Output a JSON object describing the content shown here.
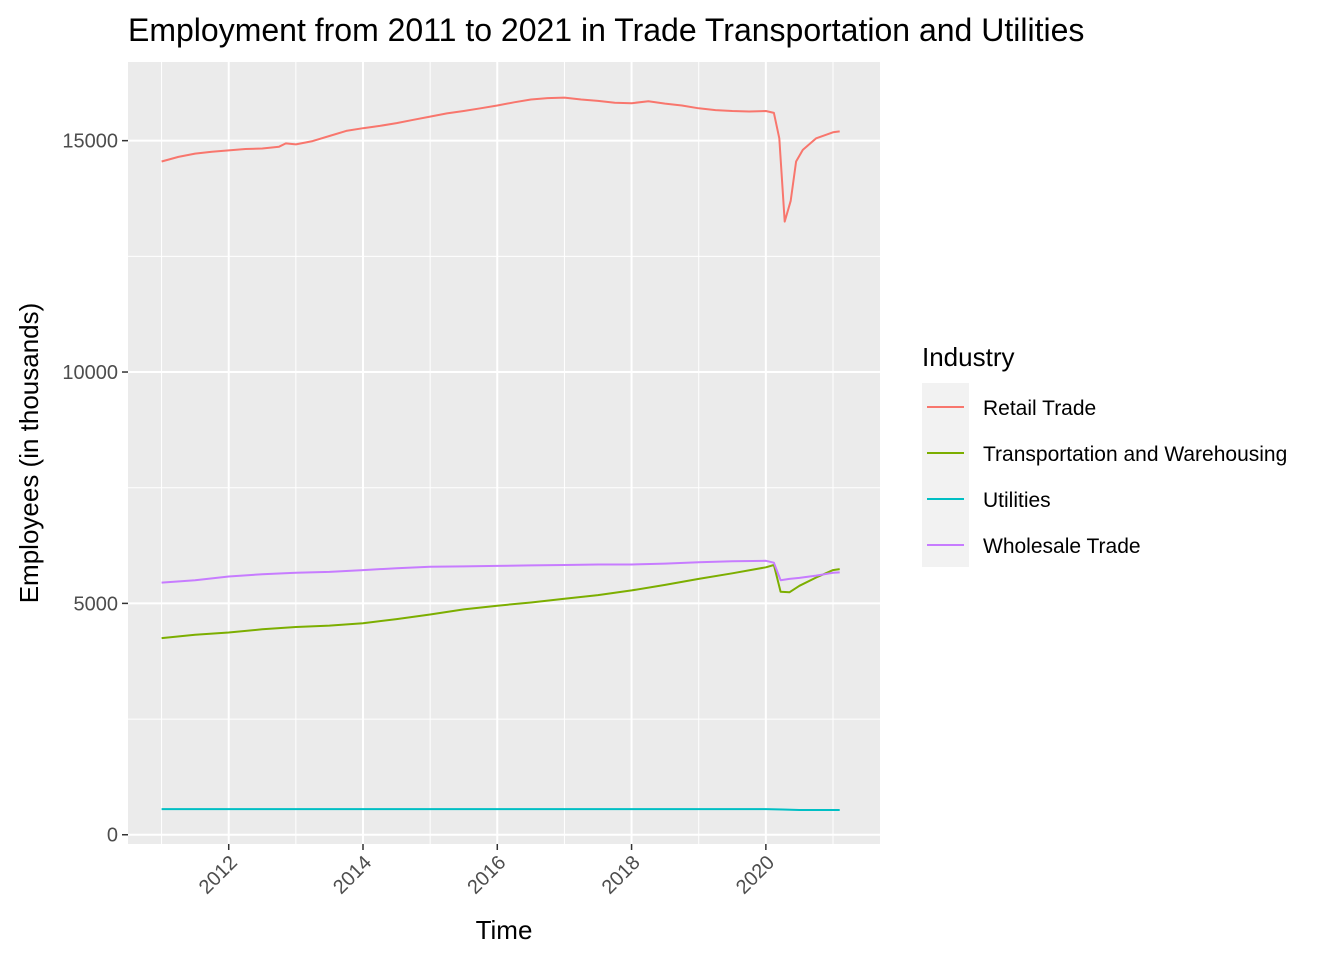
{
  "chart_data": {
    "type": "line",
    "title": "Employment from 2011 to 2021 in Trade Transportation and Utilities",
    "xlabel": "Time",
    "ylabel": "Employees (in thousands)",
    "xlim": [
      2010.5,
      2021.7
    ],
    "ylim": [
      -200,
      16700
    ],
    "x_ticks": [
      2012,
      2014,
      2016,
      2018,
      2020
    ],
    "y_ticks": [
      0,
      5000,
      10000,
      15000
    ],
    "grid": true,
    "legend": {
      "title": "Industry",
      "position": "right"
    },
    "series": [
      {
        "name": "Retail Trade",
        "color": "#F8766D",
        "x": [
          2011.0,
          2011.25,
          2011.5,
          2011.75,
          2012.0,
          2012.25,
          2012.5,
          2012.75,
          2012.85,
          2013.0,
          2013.25,
          2013.5,
          2013.75,
          2014.0,
          2014.25,
          2014.5,
          2014.75,
          2015.0,
          2015.25,
          2015.5,
          2015.75,
          2016.0,
          2016.25,
          2016.5,
          2016.75,
          2017.0,
          2017.25,
          2017.5,
          2017.75,
          2018.0,
          2018.25,
          2018.5,
          2018.75,
          2019.0,
          2019.25,
          2019.5,
          2019.75,
          2020.0,
          2020.12,
          2020.2,
          2020.28,
          2020.37,
          2020.45,
          2020.55,
          2020.75,
          2021.0,
          2021.1
        ],
        "values": [
          14550,
          14650,
          14720,
          14760,
          14790,
          14820,
          14830,
          14870,
          14940,
          14920,
          14990,
          15100,
          15210,
          15270,
          15320,
          15380,
          15450,
          15520,
          15590,
          15640,
          15700,
          15760,
          15830,
          15890,
          15920,
          15930,
          15890,
          15860,
          15820,
          15810,
          15850,
          15800,
          15760,
          15700,
          15660,
          15640,
          15630,
          15640,
          15600,
          15050,
          13250,
          13700,
          14550,
          14800,
          15050,
          15180,
          15200
        ]
      },
      {
        "name": "Transportation and Warehousing",
        "color": "#7CAE00",
        "x": [
          2011.0,
          2011.5,
          2012.0,
          2012.5,
          2013.0,
          2013.5,
          2014.0,
          2014.5,
          2015.0,
          2015.5,
          2016.0,
          2016.5,
          2017.0,
          2017.5,
          2018.0,
          2018.5,
          2019.0,
          2019.5,
          2020.0,
          2020.12,
          2020.22,
          2020.35,
          2020.5,
          2020.75,
          2021.0,
          2021.1
        ],
        "values": [
          4250,
          4320,
          4370,
          4440,
          4490,
          4520,
          4570,
          4660,
          4760,
          4870,
          4950,
          5020,
          5100,
          5180,
          5280,
          5400,
          5530,
          5650,
          5780,
          5830,
          5250,
          5240,
          5380,
          5560,
          5720,
          5740
        ]
      },
      {
        "name": "Utilities",
        "color": "#00BFC4",
        "x": [
          2011.0,
          2012.0,
          2013.0,
          2014.0,
          2015.0,
          2016.0,
          2017.0,
          2018.0,
          2019.0,
          2020.0,
          2020.25,
          2020.5,
          2021.0,
          2021.1
        ],
        "values": [
          555,
          555,
          555,
          555,
          555,
          555,
          555,
          555,
          555,
          555,
          545,
          535,
          535,
          535
        ]
      },
      {
        "name": "Wholesale Trade",
        "color": "#C77CFF",
        "x": [
          2011.0,
          2011.5,
          2012.0,
          2012.5,
          2013.0,
          2013.5,
          2014.0,
          2014.5,
          2015.0,
          2015.5,
          2016.0,
          2016.5,
          2017.0,
          2017.5,
          2018.0,
          2018.5,
          2019.0,
          2019.5,
          2020.0,
          2020.12,
          2020.22,
          2020.35,
          2020.5,
          2020.75,
          2021.0,
          2021.1
        ],
        "values": [
          5450,
          5500,
          5580,
          5630,
          5660,
          5680,
          5720,
          5760,
          5790,
          5800,
          5810,
          5820,
          5830,
          5840,
          5840,
          5860,
          5890,
          5910,
          5920,
          5880,
          5500,
          5530,
          5550,
          5600,
          5660,
          5670
        ]
      }
    ]
  },
  "colors": {
    "panel_background": "#EBEBEB",
    "grid": "#FFFFFF"
  }
}
